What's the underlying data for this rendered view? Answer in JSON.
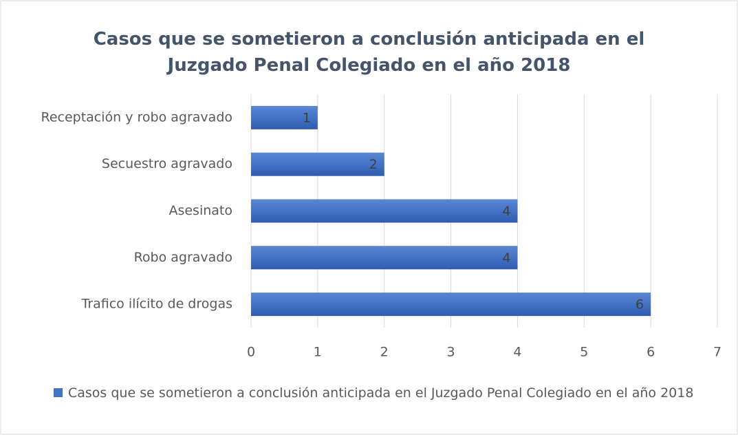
{
  "chart_data": {
    "type": "bar",
    "orientation": "horizontal",
    "title": "Casos que se sometieron a conclusión anticipada en el Juzgado Penal Colegiado en el año 2018",
    "categories": [
      "Receptación y robo agravado",
      "Secuestro agravado",
      "Asesinato",
      "Robo agravado",
      "Trafico ilícito de drogas"
    ],
    "series": [
      {
        "name": "Casos que se sometieron a conclusión anticipada en el Juzgado Penal Colegiado en el año 2018",
        "color": "#4472c4",
        "values": [
          1,
          2,
          4,
          4,
          6
        ]
      }
    ],
    "xlim": [
      0,
      7
    ],
    "xticks": [
      0,
      1,
      2,
      3,
      4,
      5,
      6,
      7
    ],
    "grid": true,
    "legend": "bottom"
  }
}
